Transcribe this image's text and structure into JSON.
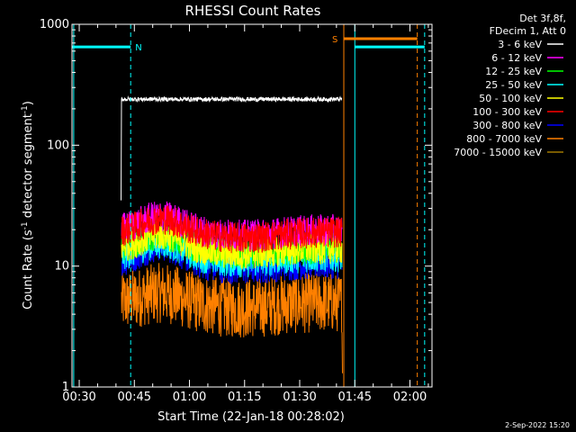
{
  "chart_data": {
    "type": "line",
    "title": "RHESSI Count Rates",
    "xlabel": "Start Time (22-Jan-18 00:28:02)",
    "ylabel_main": "Count Rate (s",
    "ylabel_sup1": "-1",
    "ylabel_mid": " detector segment",
    "ylabel_sup2": "-1",
    "ylabel_end": ")",
    "y_scale": "log",
    "xlim": [
      "00:28:02",
      "02:06:00"
    ],
    "ylim": [
      1,
      1000
    ],
    "x_ticks": [
      "00:30",
      "00:45",
      "01:00",
      "01:15",
      "01:30",
      "01:45",
      "02:00"
    ],
    "y_ticks": [
      "1",
      "10",
      "100",
      "1000"
    ],
    "legend_header": [
      "Det 3f,8f,",
      "FDecim 1, Att 0"
    ],
    "legend_placement": "right",
    "data_start": "00:41:30",
    "data_end": "01:41:30",
    "series": [
      {
        "name": "3 - 6 keV",
        "color": "#ffffff",
        "level": 240,
        "before": 35
      },
      {
        "name": "6 - 12 keV",
        "color": "#ff00ff",
        "level": 20,
        "hump": 1.3
      },
      {
        "name": "12 - 25 keV",
        "color": "#00ff00",
        "level": 14,
        "hump": 1.3
      },
      {
        "name": "25 - 50 keV",
        "color": "#00ffff",
        "level": 12,
        "hump": 1.3
      },
      {
        "name": "50 - 100 keV",
        "color": "#ffff00",
        "level": 14,
        "hump": 1.3
      },
      {
        "name": "100 - 300 keV",
        "color": "#ff0000",
        "level": 19,
        "hump": 1.3
      },
      {
        "name": "300 - 800 keV",
        "color": "#0000ff",
        "level": 10.5,
        "hump": 1.4
      },
      {
        "name": "800 - 7000 keV",
        "color": "#ff8000",
        "level": 5,
        "hump": 1.2
      },
      {
        "name": "7000 - 15000 keV",
        "color": "#a07800",
        "level": 0
      }
    ],
    "annotations": {
      "night": {
        "label": "N",
        "color": "#00ffff",
        "bar_level": 650,
        "segments": [
          [
            "00:28:02",
            "00:44:00"
          ],
          [
            "01:45:00",
            "02:04:00"
          ]
        ],
        "dashed_lines": [
          "00:44:00",
          "02:04:00"
        ],
        "solid_lines": [
          "00:28:30",
          "01:45:00"
        ]
      },
      "saa": {
        "label": "S",
        "color": "#ff8000",
        "bar_level": 760,
        "segments": [
          [
            "01:42:00",
            "02:02:00"
          ]
        ],
        "dashed_lines": [
          "02:02:00"
        ],
        "solid_lines": [
          "01:42:00"
        ]
      }
    },
    "timestamp": "2-Sep-2022 15:20"
  }
}
